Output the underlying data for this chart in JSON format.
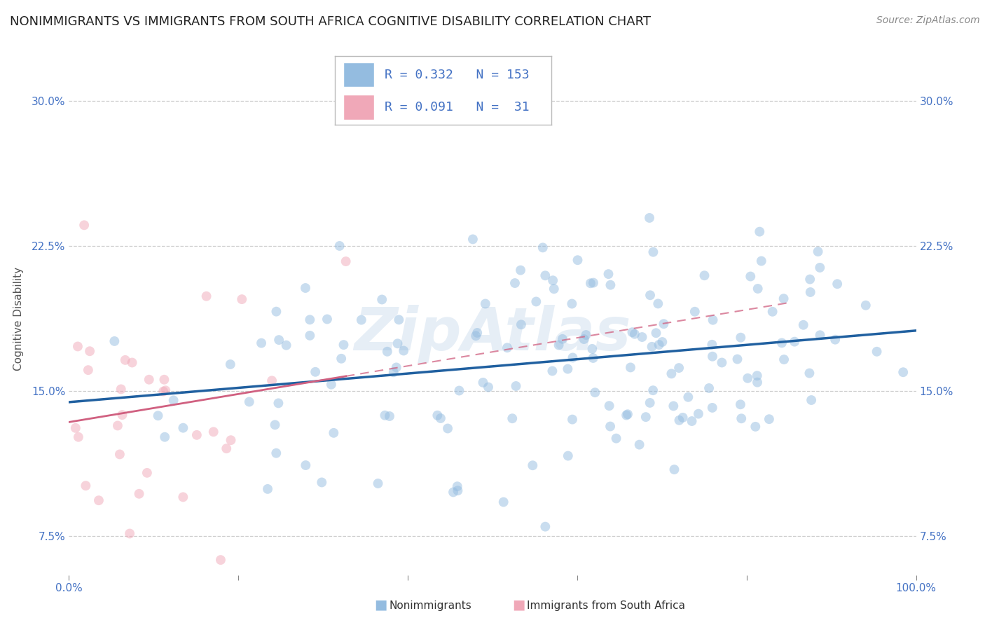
{
  "title": "NONIMMIGRANTS VS IMMIGRANTS FROM SOUTH AFRICA COGNITIVE DISABILITY CORRELATION CHART",
  "source": "Source: ZipAtlas.com",
  "ylabel": "Cognitive Disability",
  "xlim": [
    0,
    100
  ],
  "ylim": [
    5.5,
    32.0
  ],
  "yticks": [
    7.5,
    15.0,
    22.5,
    30.0
  ],
  "ytick_labels": [
    "7.5%",
    "15.0%",
    "22.5%",
    "30.0%"
  ],
  "xticks": [
    0,
    20,
    40,
    60,
    80,
    100
  ],
  "xtick_labels": [
    "0.0%",
    "",
    "",
    "",
    "",
    "100.0%"
  ],
  "blue_color": "#94bce0",
  "blue_line_color": "#2060a0",
  "pink_color": "#f0a8b8",
  "pink_line_color": "#d06080",
  "R1": 0.332,
  "N1": 153,
  "R2": 0.091,
  "N2": 31,
  "watermark": "ZipAtlas",
  "title_fontsize": 13,
  "source_fontsize": 10,
  "axis_label_fontsize": 11,
  "tick_fontsize": 11,
  "background_color": "#ffffff",
  "grid_color": "#cccccc",
  "tick_color": "#4472c4",
  "dot_alpha": 0.5,
  "dot_size": 100,
  "blue_seed": 12,
  "pink_seed": 99
}
